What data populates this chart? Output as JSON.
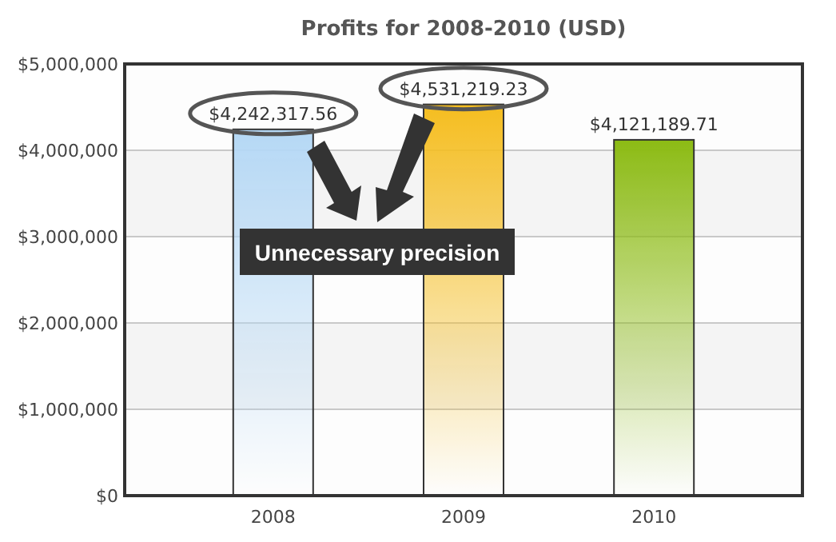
{
  "chart_data": {
    "type": "bar",
    "title": "Profits for 2008-2010 (USD)",
    "categories": [
      "2008",
      "2009",
      "2010"
    ],
    "values": [
      4242317.56,
      4531219.23,
      4121189.71
    ],
    "colors": [
      "#b5d8f5",
      "#f5bd1f",
      "#8cbb14"
    ],
    "value_labels": [
      "$4,242,317.56",
      "$4,531,219.23",
      "$4,121,189.71"
    ],
    "ylim": [
      0,
      5000000
    ],
    "yticks": [
      {
        "value": 0,
        "label": "$0"
      },
      {
        "value": 1000000,
        "label": "$1,000,000"
      },
      {
        "value": 2000000,
        "label": "$2,000,000"
      },
      {
        "value": 3000000,
        "label": "$3,000,000"
      },
      {
        "value": 4000000,
        "label": "$4,000,000"
      },
      {
        "value": 5000000,
        "label": "$5,000,000"
      }
    ],
    "grid": "y",
    "annotations": [
      "Unnecessary precision"
    ]
  }
}
